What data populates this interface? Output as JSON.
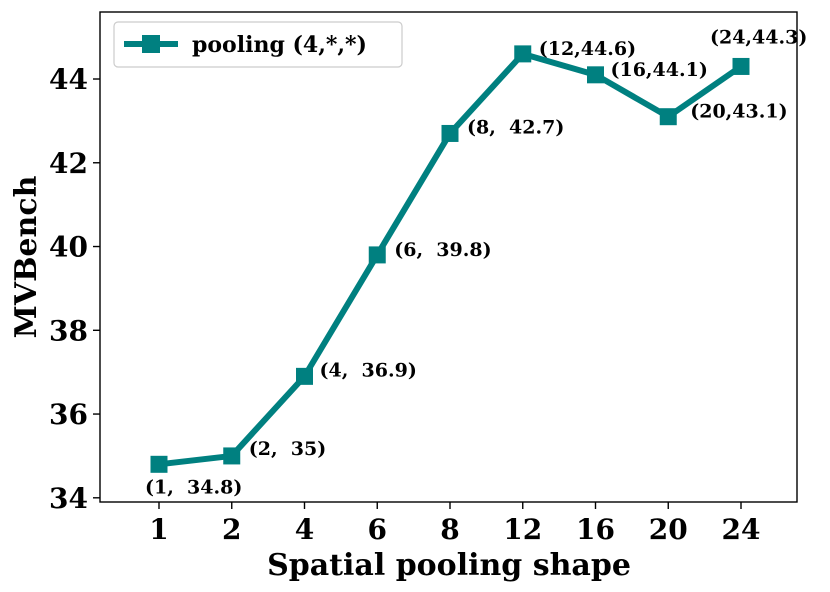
{
  "chart_data": {
    "type": "line",
    "categories": [
      "1",
      "2",
      "4",
      "6",
      "8",
      "12",
      "16",
      "20",
      "24"
    ],
    "series": [
      {
        "name": "pooling (4,*,*)",
        "values": [
          34.8,
          35,
          36.9,
          39.8,
          42.7,
          44.6,
          44.1,
          43.1,
          44.3
        ],
        "color": "#008080",
        "marker": "square"
      }
    ],
    "annotations": [
      "(1,  34.8)",
      "(2,  35)",
      "(4,  36.9)",
      "(6,  39.8)",
      "(8,  42.7)",
      "(12,44.6)",
      "(16,44.1)",
      "(20,43.1)",
      "(24,44.3)"
    ],
    "yticks": [
      "34",
      "36",
      "38",
      "40",
      "42",
      "44"
    ],
    "ytick_values": [
      34,
      36,
      38,
      40,
      42,
      44
    ],
    "xlabel": "Spatial pooling shape",
    "ylabel": "MVBench",
    "ylim": [
      33.9,
      45.6
    ],
    "legend": {
      "label": "pooling (4,*,*)",
      "position": "top-left"
    },
    "grid": false
  }
}
